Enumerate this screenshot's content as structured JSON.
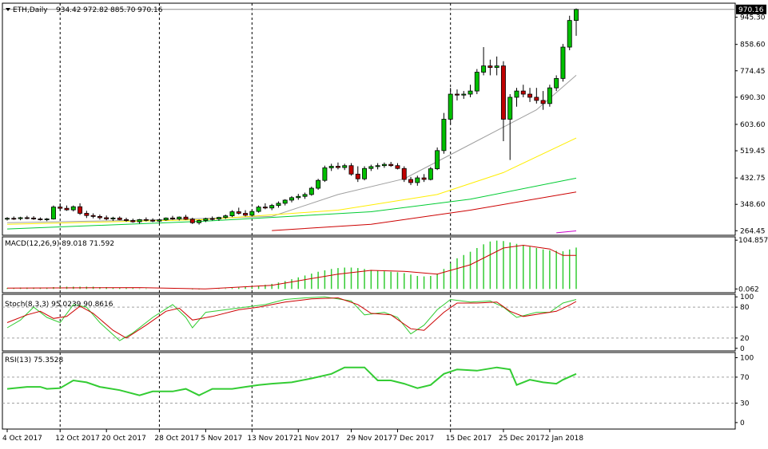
{
  "chart_data": {
    "type": "candlestick",
    "symbol": "ETH,Daily",
    "ohlc_readout": [
      "934.42",
      "972.82",
      "885.70",
      "970.16"
    ],
    "current_price_label": "970.16",
    "x_tick_labels": [
      "4 Oct 2017",
      "12 Oct 2017",
      "20 Oct 2017",
      "28 Oct 2017",
      "5 Nov 2017",
      "13 Nov 2017",
      "21 Nov 2017",
      "29 Nov 2017",
      "7 Dec 2017",
      "15 Dec 2017",
      "25 Dec 2017",
      "2 Jan 2018"
    ],
    "price_axis": {
      "ticks": [
        "945.30",
        "858.60",
        "774.45",
        "690.30",
        "603.60",
        "519.45",
        "432.75",
        "348.60",
        "264.45"
      ],
      "ylim": [
        250,
        990
      ]
    },
    "candles": [
      [
        302,
        308,
        297,
        304
      ],
      [
        304,
        310,
        299,
        303
      ],
      [
        303,
        309,
        298,
        306
      ],
      [
        306,
        312,
        301,
        305
      ],
      [
        305,
        311,
        299,
        302
      ],
      [
        302,
        307,
        297,
        300
      ],
      [
        300,
        305,
        295,
        302
      ],
      [
        302,
        345,
        300,
        340
      ],
      [
        340,
        352,
        330,
        336
      ],
      [
        336,
        345,
        328,
        331
      ],
      [
        331,
        345,
        326,
        341
      ],
      [
        341,
        352,
        315,
        320
      ],
      [
        320,
        328,
        305,
        313
      ],
      [
        313,
        320,
        304,
        310
      ],
      [
        310,
        316,
        300,
        306
      ],
      [
        306,
        313,
        298,
        302
      ],
      [
        302,
        309,
        296,
        305
      ],
      [
        305,
        310,
        298,
        300
      ],
      [
        300,
        306,
        293,
        297
      ],
      [
        297,
        303,
        290,
        293
      ],
      [
        293,
        302,
        287,
        300
      ],
      [
        300,
        307,
        294,
        298
      ],
      [
        298,
        304,
        292,
        295
      ],
      [
        295,
        302,
        289,
        299
      ],
      [
        299,
        307,
        296,
        305
      ],
      [
        305,
        312,
        299,
        302
      ],
      [
        302,
        310,
        297,
        308
      ],
      [
        308,
        315,
        299,
        301
      ],
      [
        301,
        306,
        286,
        290
      ],
      [
        290,
        300,
        284,
        297
      ],
      [
        297,
        306,
        292,
        303
      ],
      [
        303,
        310,
        297,
        302
      ],
      [
        302,
        309,
        296,
        307
      ],
      [
        307,
        316,
        302,
        312
      ],
      [
        312,
        330,
        308,
        325
      ],
      [
        325,
        338,
        316,
        320
      ],
      [
        320,
        330,
        310,
        314
      ],
      [
        314,
        330,
        310,
        326
      ],
      [
        326,
        345,
        322,
        340
      ],
      [
        340,
        352,
        333,
        337
      ],
      [
        337,
        350,
        330,
        345
      ],
      [
        345,
        358,
        338,
        352
      ],
      [
        352,
        365,
        345,
        362
      ],
      [
        362,
        375,
        355,
        370
      ],
      [
        370,
        382,
        363,
        374
      ],
      [
        374,
        386,
        366,
        380
      ],
      [
        380,
        405,
        376,
        400
      ],
      [
        400,
        430,
        395,
        425
      ],
      [
        425,
        472,
        420,
        465
      ],
      [
        465,
        478,
        455,
        470
      ],
      [
        470,
        482,
        460,
        466
      ],
      [
        466,
        478,
        458,
        472
      ],
      [
        472,
        480,
        440,
        445
      ],
      [
        445,
        470,
        420,
        430
      ],
      [
        430,
        470,
        425,
        463
      ],
      [
        463,
        475,
        455,
        469
      ],
      [
        469,
        480,
        460,
        472
      ],
      [
        472,
        482,
        465,
        476
      ],
      [
        476,
        484,
        468,
        472
      ],
      [
        472,
        480,
        460,
        463
      ],
      [
        463,
        470,
        420,
        428
      ],
      [
        428,
        436,
        410,
        418
      ],
      [
        418,
        440,
        408,
        433
      ],
      [
        433,
        445,
        420,
        428
      ],
      [
        428,
        468,
        425,
        462
      ],
      [
        462,
        530,
        458,
        520
      ],
      [
        520,
        640,
        510,
        620
      ],
      [
        620,
        720,
        605,
        700
      ],
      [
        700,
        715,
        680,
        697
      ],
      [
        697,
        710,
        685,
        700
      ],
      [
        700,
        730,
        690,
        710
      ],
      [
        710,
        780,
        700,
        770
      ],
      [
        770,
        850,
        760,
        790
      ],
      [
        790,
        810,
        760,
        785
      ],
      [
        785,
        820,
        760,
        790
      ],
      [
        790,
        805,
        550,
        620
      ],
      [
        620,
        700,
        490,
        690
      ],
      [
        690,
        720,
        660,
        710
      ],
      [
        710,
        730,
        690,
        700
      ],
      [
        700,
        720,
        675,
        690
      ],
      [
        690,
        720,
        670,
        680
      ],
      [
        680,
        710,
        650,
        670
      ],
      [
        670,
        730,
        660,
        720
      ],
      [
        720,
        760,
        710,
        750
      ],
      [
        750,
        860,
        740,
        850
      ],
      [
        850,
        950,
        840,
        935
      ],
      [
        935,
        973,
        886,
        970
      ]
    ],
    "moving_averages": [
      {
        "color": "#a0a0a0",
        "values": [
          {
            "i": 0,
            "v": 290
          },
          {
            "i": 20,
            "v": 298
          },
          {
            "i": 40,
            "v": 310
          },
          {
            "i": 50,
            "v": 380
          },
          {
            "i": 60,
            "v": 430
          },
          {
            "i": 70,
            "v": 540
          },
          {
            "i": 80,
            "v": 650
          },
          {
            "i": 86,
            "v": 760
          }
        ]
      },
      {
        "color": "#ffee00",
        "values": [
          {
            "i": 0,
            "v": 285
          },
          {
            "i": 30,
            "v": 300
          },
          {
            "i": 50,
            "v": 330
          },
          {
            "i": 65,
            "v": 380
          },
          {
            "i": 75,
            "v": 450
          },
          {
            "i": 86,
            "v": 560
          }
        ]
      },
      {
        "color": "#00cc33",
        "values": [
          {
            "i": 0,
            "v": 270
          },
          {
            "i": 30,
            "v": 295
          },
          {
            "i": 55,
            "v": 325
          },
          {
            "i": 70,
            "v": 365
          },
          {
            "i": 86,
            "v": 432
          }
        ]
      },
      {
        "color": "#cc0000",
        "values": [
          {
            "i": 40,
            "v": 265
          },
          {
            "i": 55,
            "v": 285
          },
          {
            "i": 70,
            "v": 330
          },
          {
            "i": 86,
            "v": 388
          }
        ]
      },
      {
        "color": "#cc00cc",
        "values": [
          {
            "i": 83,
            "v": 258
          },
          {
            "i": 86,
            "v": 264
          }
        ]
      }
    ],
    "macd": {
      "label": "MACD(12,26,9) 89.018 71.592",
      "ticks": [
        "104.857",
        "0.062"
      ],
      "ylim": [
        -8,
        112
      ],
      "histogram": [
        2,
        2,
        3,
        3,
        3,
        3,
        3,
        4,
        5,
        5,
        5,
        5,
        5,
        5,
        4,
        4,
        3,
        3,
        2,
        2,
        1,
        1,
        0,
        0,
        0,
        0,
        0,
        0,
        -1,
        -1,
        0,
        0,
        1,
        1,
        2,
        3,
        4,
        5,
        7,
        9,
        11,
        14,
        17,
        21,
        25,
        29,
        33,
        37,
        40,
        43,
        45,
        46,
        46,
        45,
        43,
        41,
        39,
        38,
        37,
        36,
        34,
        31,
        28,
        27,
        28,
        33,
        43,
        55,
        66,
        73,
        80,
        88,
        96,
        102,
        104,
        103,
        100,
        97,
        94,
        91,
        88,
        85,
        83,
        82,
        81,
        85,
        89
      ],
      "signal": [
        {
          "i": 0,
          "v": 2
        },
        {
          "i": 20,
          "v": 3
        },
        {
          "i": 30,
          "v": 0
        },
        {
          "i": 40,
          "v": 8
        },
        {
          "i": 50,
          "v": 32
        },
        {
          "i": 55,
          "v": 40
        },
        {
          "i": 60,
          "v": 38
        },
        {
          "i": 65,
          "v": 32
        },
        {
          "i": 70,
          "v": 52
        },
        {
          "i": 75,
          "v": 88
        },
        {
          "i": 78,
          "v": 94
        },
        {
          "i": 82,
          "v": 86
        },
        {
          "i": 84,
          "v": 72
        },
        {
          "i": 86,
          "v": 72
        }
      ]
    },
    "stoch": {
      "label": "Stoch(8,3,3) 95.0239 90.8616",
      "ticks": [
        "100",
        "80",
        "20",
        "0"
      ],
      "ylim": [
        0,
        100
      ],
      "main": [
        {
          "i": 0,
          "v": 40
        },
        {
          "i": 2,
          "v": 55
        },
        {
          "i": 4,
          "v": 80
        },
        {
          "i": 6,
          "v": 60
        },
        {
          "i": 8,
          "v": 50
        },
        {
          "i": 10,
          "v": 85
        },
        {
          "i": 12,
          "v": 80
        },
        {
          "i": 14,
          "v": 50
        },
        {
          "i": 17,
          "v": 15
        },
        {
          "i": 19,
          "v": 30
        },
        {
          "i": 22,
          "v": 60
        },
        {
          "i": 25,
          "v": 85
        },
        {
          "i": 27,
          "v": 60
        },
        {
          "i": 28,
          "v": 40
        },
        {
          "i": 30,
          "v": 70
        },
        {
          "i": 33,
          "v": 75
        },
        {
          "i": 36,
          "v": 80
        },
        {
          "i": 39,
          "v": 85
        },
        {
          "i": 42,
          "v": 95
        },
        {
          "i": 45,
          "v": 98
        },
        {
          "i": 48,
          "v": 100
        },
        {
          "i": 52,
          "v": 92
        },
        {
          "i": 54,
          "v": 65
        },
        {
          "i": 57,
          "v": 70
        },
        {
          "i": 59,
          "v": 60
        },
        {
          "i": 61,
          "v": 28
        },
        {
          "i": 63,
          "v": 45
        },
        {
          "i": 65,
          "v": 75
        },
        {
          "i": 67,
          "v": 95
        },
        {
          "i": 70,
          "v": 90
        },
        {
          "i": 73,
          "v": 92
        },
        {
          "i": 75,
          "v": 80
        },
        {
          "i": 77,
          "v": 60
        },
        {
          "i": 80,
          "v": 70
        },
        {
          "i": 82,
          "v": 70
        },
        {
          "i": 84,
          "v": 88
        },
        {
          "i": 86,
          "v": 95
        }
      ],
      "signal": [
        {
          "i": 0,
          "v": 50
        },
        {
          "i": 3,
          "v": 65
        },
        {
          "i": 5,
          "v": 72
        },
        {
          "i": 7,
          "v": 58
        },
        {
          "i": 9,
          "v": 62
        },
        {
          "i": 11,
          "v": 82
        },
        {
          "i": 13,
          "v": 68
        },
        {
          "i": 16,
          "v": 35
        },
        {
          "i": 18,
          "v": 20
        },
        {
          "i": 21,
          "v": 45
        },
        {
          "i": 24,
          "v": 72
        },
        {
          "i": 26,
          "v": 78
        },
        {
          "i": 28,
          "v": 55
        },
        {
          "i": 31,
          "v": 62
        },
        {
          "i": 35,
          "v": 75
        },
        {
          "i": 38,
          "v": 80
        },
        {
          "i": 42,
          "v": 90
        },
        {
          "i": 46,
          "v": 96
        },
        {
          "i": 50,
          "v": 98
        },
        {
          "i": 53,
          "v": 85
        },
        {
          "i": 55,
          "v": 68
        },
        {
          "i": 58,
          "v": 65
        },
        {
          "i": 61,
          "v": 38
        },
        {
          "i": 63,
          "v": 35
        },
        {
          "i": 66,
          "v": 70
        },
        {
          "i": 68,
          "v": 88
        },
        {
          "i": 71,
          "v": 88
        },
        {
          "i": 74,
          "v": 90
        },
        {
          "i": 76,
          "v": 72
        },
        {
          "i": 78,
          "v": 62
        },
        {
          "i": 81,
          "v": 68
        },
        {
          "i": 83,
          "v": 72
        },
        {
          "i": 85,
          "v": 84
        },
        {
          "i": 86,
          "v": 91
        }
      ]
    },
    "rsi": {
      "label": "RSI(13) 75.3528",
      "ticks": [
        "100",
        "70",
        "30",
        "0"
      ],
      "ylim": [
        0,
        100
      ],
      "values": [
        {
          "i": 0,
          "v": 52
        },
        {
          "i": 3,
          "v": 55
        },
        {
          "i": 5,
          "v": 55
        },
        {
          "i": 6,
          "v": 52
        },
        {
          "i": 8,
          "v": 53
        },
        {
          "i": 10,
          "v": 65
        },
        {
          "i": 12,
          "v": 62
        },
        {
          "i": 14,
          "v": 55
        },
        {
          "i": 17,
          "v": 50
        },
        {
          "i": 20,
          "v": 42
        },
        {
          "i": 22,
          "v": 48
        },
        {
          "i": 25,
          "v": 48
        },
        {
          "i": 27,
          "v": 52
        },
        {
          "i": 29,
          "v": 42
        },
        {
          "i": 31,
          "v": 52
        },
        {
          "i": 34,
          "v": 52
        },
        {
          "i": 36,
          "v": 55
        },
        {
          "i": 38,
          "v": 58
        },
        {
          "i": 40,
          "v": 60
        },
        {
          "i": 43,
          "v": 62
        },
        {
          "i": 46,
          "v": 68
        },
        {
          "i": 49,
          "v": 75
        },
        {
          "i": 51,
          "v": 85
        },
        {
          "i": 54,
          "v": 85
        },
        {
          "i": 56,
          "v": 65
        },
        {
          "i": 58,
          "v": 65
        },
        {
          "i": 60,
          "v": 60
        },
        {
          "i": 62,
          "v": 53
        },
        {
          "i": 64,
          "v": 58
        },
        {
          "i": 66,
          "v": 75
        },
        {
          "i": 68,
          "v": 82
        },
        {
          "i": 71,
          "v": 80
        },
        {
          "i": 74,
          "v": 85
        },
        {
          "i": 76,
          "v": 82
        },
        {
          "i": 77,
          "v": 58
        },
        {
          "i": 79,
          "v": 66
        },
        {
          "i": 81,
          "v": 62
        },
        {
          "i": 83,
          "v": 60
        },
        {
          "i": 84,
          "v": 66
        },
        {
          "i": 86,
          "v": 75
        }
      ]
    },
    "vertical_markers": [
      8,
      23,
      37,
      67
    ]
  }
}
